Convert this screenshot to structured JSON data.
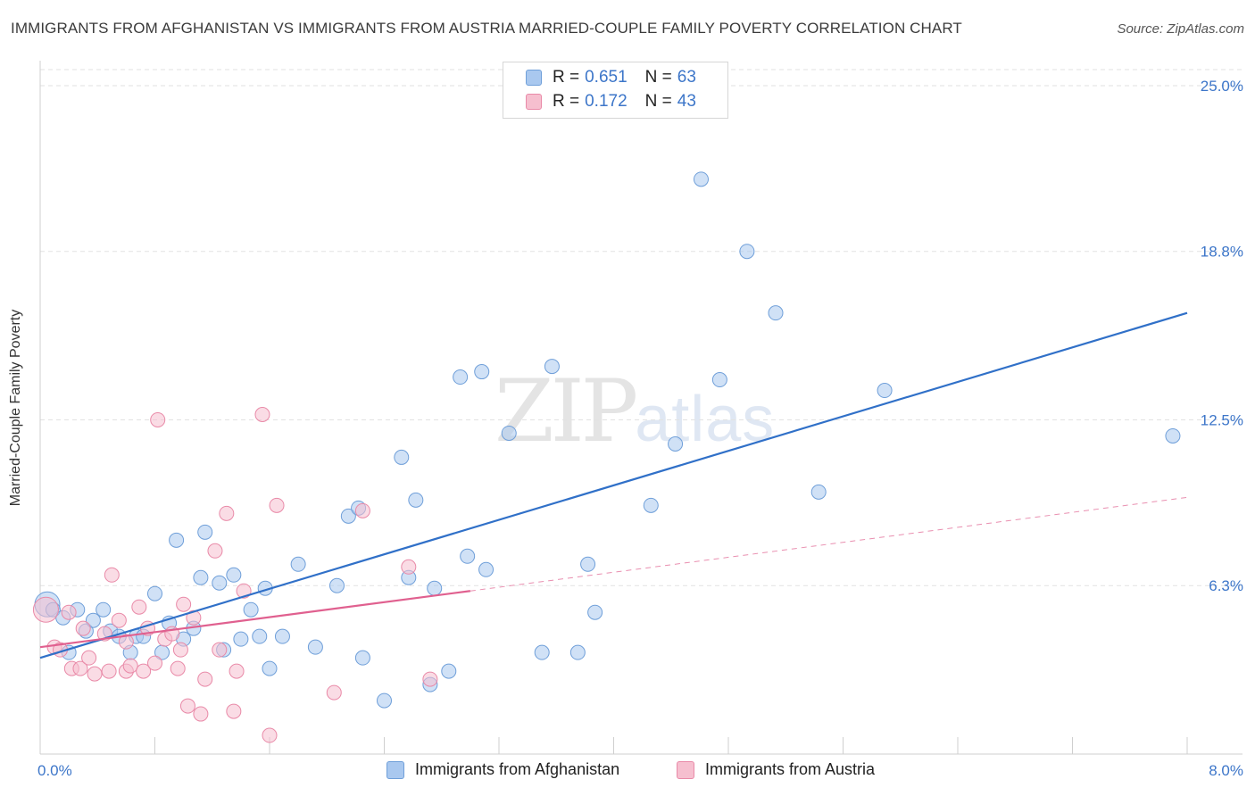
{
  "title": "IMMIGRANTS FROM AFGHANISTAN VS IMMIGRANTS FROM AUSTRIA MARRIED-COUPLE FAMILY POVERTY CORRELATION CHART",
  "source": "Source: ZipAtlas.com",
  "watermark": {
    "zip": "ZIP",
    "atlas": "atlas"
  },
  "legend_top": {
    "rows": [
      {
        "r_label": "R = ",
        "r_value": "0.651",
        "n_label": "N = ",
        "n_value": "63"
      },
      {
        "r_label": "R = ",
        "r_value": "0.172",
        "n_label": "N = ",
        "n_value": "43"
      }
    ]
  },
  "colors": {
    "blue_fill": "#a9c8ef",
    "blue_stroke": "#6f9fd9",
    "blue_line": "#3070c8",
    "pink_fill": "#f6bfcf",
    "pink_stroke": "#e98aa8",
    "pink_line": "#e0608f",
    "tick_label": "#3d76c9",
    "grid": "#e2e2e2"
  },
  "chart_data": {
    "type": "scatter",
    "title": "IMMIGRANTS FROM AFGHANISTAN VS IMMIGRANTS FROM AUSTRIA MARRIED-COUPLE FAMILY POVERTY CORRELATION CHART",
    "xlabel": "",
    "ylabel": "Married-Couple Family Poverty",
    "xlim": [
      0,
      8.0
    ],
    "ylim": [
      0,
      25.6
    ],
    "x_tick_labels": [
      "0.0%",
      "8.0%"
    ],
    "y_ticks": [
      6.3,
      12.5,
      18.8,
      25.0
    ],
    "y_tick_labels": [
      "6.3%",
      "12.5%",
      "18.8%",
      "25.0%"
    ],
    "grid": true,
    "series": [
      {
        "name": "Immigrants from Afghanistan",
        "r": 0.651,
        "n": 63,
        "trend": {
          "x": [
            0.0,
            8.0
          ],
          "y": [
            3.6,
            16.5
          ]
        },
        "points": [
          [
            0.05,
            5.6,
            2
          ],
          [
            0.09,
            5.4,
            1
          ],
          [
            0.16,
            5.1,
            1
          ],
          [
            0.2,
            3.8,
            1
          ],
          [
            0.26,
            5.4,
            1
          ],
          [
            0.32,
            4.6,
            1
          ],
          [
            0.37,
            5.0,
            1
          ],
          [
            0.44,
            5.4,
            1
          ],
          [
            0.49,
            4.6,
            1
          ],
          [
            0.55,
            4.4,
            1
          ],
          [
            0.63,
            3.8,
            1
          ],
          [
            0.67,
            4.4,
            1
          ],
          [
            0.72,
            4.4,
            1
          ],
          [
            0.8,
            6.0,
            1
          ],
          [
            0.85,
            3.8,
            1
          ],
          [
            0.9,
            4.9,
            1
          ],
          [
            0.95,
            8.0,
            1
          ],
          [
            1.0,
            4.3,
            1
          ],
          [
            1.07,
            4.7,
            1
          ],
          [
            1.12,
            6.6,
            1
          ],
          [
            1.15,
            8.3,
            1
          ],
          [
            1.25,
            6.4,
            1
          ],
          [
            1.35,
            6.7,
            1
          ],
          [
            1.28,
            3.9,
            1
          ],
          [
            1.4,
            4.3,
            1
          ],
          [
            1.47,
            5.4,
            1
          ],
          [
            1.57,
            6.2,
            1
          ],
          [
            1.53,
            4.4,
            1
          ],
          [
            1.69,
            4.4,
            1
          ],
          [
            1.6,
            3.2,
            1
          ],
          [
            1.8,
            7.1,
            1
          ],
          [
            1.92,
            4.0,
            1
          ],
          [
            2.07,
            6.3,
            1
          ],
          [
            2.15,
            8.9,
            1
          ],
          [
            2.22,
            9.2,
            1
          ],
          [
            2.25,
            3.6,
            1
          ],
          [
            2.4,
            2.0,
            1
          ],
          [
            2.52,
            11.1,
            1
          ],
          [
            2.57,
            6.6,
            1
          ],
          [
            2.62,
            9.5,
            1
          ],
          [
            2.72,
            2.6,
            1
          ],
          [
            2.75,
            6.2,
            1
          ],
          [
            2.85,
            3.1,
            1
          ],
          [
            2.93,
            14.1,
            1
          ],
          [
            2.98,
            7.4,
            1
          ],
          [
            3.08,
            14.3,
            1
          ],
          [
            3.11,
            6.9,
            1
          ],
          [
            3.27,
            12.0,
            1
          ],
          [
            3.5,
            3.8,
            1
          ],
          [
            3.57,
            14.5,
            1
          ],
          [
            3.75,
            3.8,
            1
          ],
          [
            3.82,
            7.1,
            1
          ],
          [
            3.87,
            5.3,
            1
          ],
          [
            4.26,
            9.3,
            1
          ],
          [
            4.43,
            11.6,
            1
          ],
          [
            4.61,
            21.5,
            1
          ],
          [
            4.74,
            14.0,
            1
          ],
          [
            4.93,
            18.8,
            1
          ],
          [
            5.13,
            16.5,
            1
          ],
          [
            5.43,
            9.8,
            1
          ],
          [
            5.89,
            13.6,
            1
          ],
          [
            7.9,
            11.9,
            1
          ]
        ]
      },
      {
        "name": "Immigrants from Austria",
        "r": 0.172,
        "n": 43,
        "trend": {
          "x": [
            0.0,
            3.0
          ],
          "y": [
            4.0,
            6.1
          ]
        },
        "trend_extension": {
          "x": [
            3.0,
            8.0
          ],
          "y": [
            6.1,
            9.6
          ]
        },
        "points": [
          [
            0.04,
            5.4,
            2
          ],
          [
            0.1,
            4.0,
            1
          ],
          [
            0.14,
            3.9,
            1
          ],
          [
            0.2,
            5.3,
            1
          ],
          [
            0.22,
            3.2,
            1
          ],
          [
            0.28,
            3.2,
            1
          ],
          [
            0.3,
            4.7,
            1
          ],
          [
            0.34,
            3.6,
            1
          ],
          [
            0.38,
            3.0,
            1
          ],
          [
            0.45,
            4.5,
            1
          ],
          [
            0.5,
            6.7,
            1
          ],
          [
            0.55,
            5.0,
            1
          ],
          [
            0.6,
            3.1,
            1
          ],
          [
            0.63,
            3.3,
            1
          ],
          [
            0.69,
            5.5,
            1
          ],
          [
            0.72,
            3.1,
            1
          ],
          [
            0.75,
            4.7,
            1
          ],
          [
            0.8,
            3.4,
            1
          ],
          [
            0.82,
            12.5,
            1
          ],
          [
            0.87,
            4.3,
            1
          ],
          [
            0.92,
            4.5,
            1
          ],
          [
            0.96,
            3.2,
            1
          ],
          [
            1.0,
            5.6,
            1
          ],
          [
            1.03,
            1.8,
            1
          ],
          [
            1.07,
            5.1,
            1
          ],
          [
            1.12,
            1.5,
            1
          ],
          [
            1.15,
            2.8,
            1
          ],
          [
            1.25,
            3.9,
            1
          ],
          [
            1.3,
            9.0,
            1
          ],
          [
            1.35,
            1.6,
            1
          ],
          [
            1.42,
            6.1,
            1
          ],
          [
            1.55,
            12.7,
            1
          ],
          [
            1.6,
            0.7,
            1
          ],
          [
            1.65,
            9.3,
            1
          ],
          [
            2.05,
            2.3,
            1
          ],
          [
            2.25,
            9.1,
            1
          ],
          [
            2.57,
            7.0,
            1
          ],
          [
            2.72,
            2.8,
            1
          ],
          [
            1.22,
            7.6,
            1
          ],
          [
            1.37,
            3.1,
            1
          ],
          [
            0.6,
            4.2,
            1
          ],
          [
            0.48,
            3.1,
            1
          ],
          [
            0.98,
            3.9,
            1
          ]
        ]
      }
    ]
  },
  "legend_bottom": [
    {
      "label": "Immigrants from Afghanistan"
    },
    {
      "label": "Immigrants from Austria"
    }
  ]
}
